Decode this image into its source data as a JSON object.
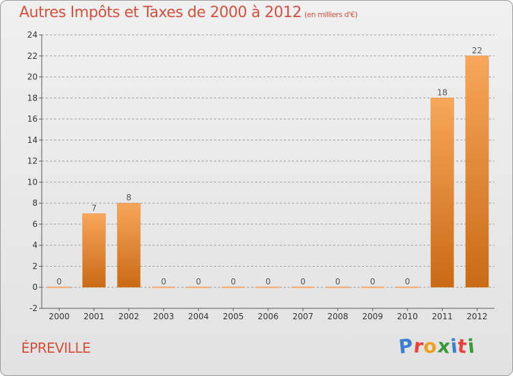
{
  "title": "Autres Impôts et Taxes de 2000 à 2012",
  "unit_note": "(en milliers d'€)",
  "commune": "ÉPREVILLE",
  "logo": {
    "text": "Proxiti",
    "letter_colors": [
      "#3a7fd0",
      "#e8423a",
      "#f0a020",
      "#3a9a3a",
      "#3a7fd0",
      "#e8423a",
      "#3a9a3a"
    ]
  },
  "colors": {
    "title": "#d2503c",
    "bar_top": "#f7a65a",
    "bar_bottom": "#c96a16",
    "zero_bar": "#f2a766",
    "axis": "#555555",
    "grid": "#9a9a9a",
    "tick_text": "#333333"
  },
  "chart_data": {
    "type": "bar",
    "categories": [
      "2000",
      "2001",
      "2002",
      "2003",
      "2004",
      "2005",
      "2006",
      "2007",
      "2008",
      "2009",
      "2010",
      "2011",
      "2012"
    ],
    "values": [
      0,
      7,
      8,
      0,
      0,
      0,
      0,
      0,
      0,
      0,
      0,
      18,
      22
    ],
    "data_labels": [
      "0",
      "7",
      "8",
      "0",
      "0",
      "0",
      "0",
      "0",
      "0",
      "0",
      "0",
      "18",
      "22"
    ],
    "ylim": [
      -2,
      24
    ],
    "y_ticks": [
      -2,
      0,
      2,
      4,
      6,
      8,
      10,
      12,
      14,
      16,
      18,
      20,
      22,
      24
    ],
    "y_tick_labels": [
      "-2",
      "0",
      "2",
      "4",
      "6",
      "8",
      "10",
      "12",
      "14",
      "16",
      "18",
      "20",
      "22",
      "24"
    ],
    "grid": "horizontal dashed",
    "xlabel": "",
    "ylabel": ""
  }
}
